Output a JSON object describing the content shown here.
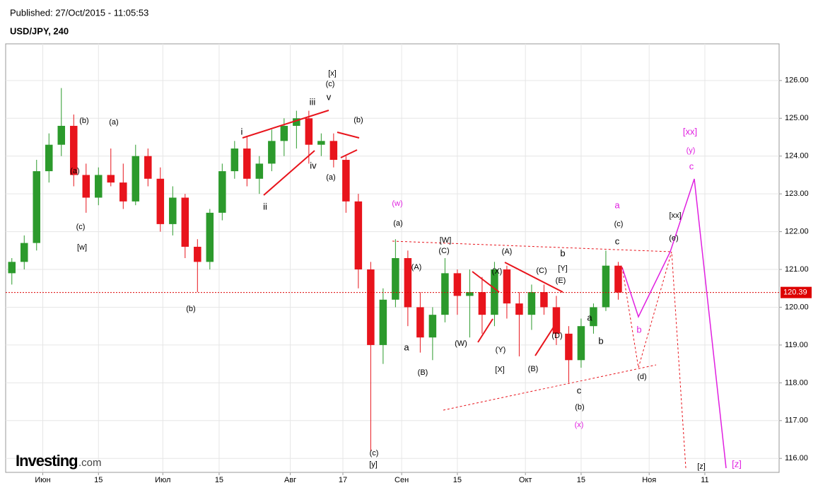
{
  "header": {
    "published": "Published: 27/Oct/2015 - 11:05:53",
    "symbol": "USD/JPY, 240"
  },
  "logo": {
    "brand": "Investing",
    "suffix": ".com"
  },
  "chart_data": {
    "type": "candlestick",
    "x": [
      1,
      3,
      5,
      7,
      9,
      11,
      13,
      15,
      17,
      19,
      21,
      23,
      25,
      27,
      29,
      31,
      33,
      35,
      37,
      39,
      41,
      43,
      45,
      47,
      49,
      51,
      53,
      55,
      57,
      59,
      61,
      63,
      65,
      67,
      69,
      71,
      73,
      75,
      77,
      79,
      81,
      83,
      85,
      87,
      89,
      91,
      93,
      95,
      97,
      99
    ],
    "open": [
      120.9,
      121.2,
      121.7,
      123.6,
      124.3,
      124.8,
      123.5,
      122.9,
      123.5,
      123.3,
      122.8,
      124.0,
      123.4,
      122.2,
      122.9,
      121.6,
      121.2,
      122.5,
      123.6,
      124.2,
      123.4,
      123.8,
      124.4,
      124.8,
      125.0,
      124.3,
      124.4,
      123.9,
      122.8,
      121.0,
      119.0,
      120.2,
      121.3,
      120.0,
      119.2,
      119.8,
      120.9,
      120.3,
      120.4,
      119.8,
      121.0,
      120.1,
      119.8,
      120.4,
      120.0,
      119.3,
      118.6,
      119.5,
      120.0,
      121.1
    ],
    "high": [
      121.3,
      121.9,
      123.9,
      124.6,
      125.8,
      125.1,
      123.8,
      123.7,
      124.2,
      123.8,
      124.3,
      124.2,
      123.7,
      123.2,
      123.0,
      121.8,
      122.6,
      123.8,
      124.4,
      124.5,
      124.0,
      124.7,
      125.0,
      125.2,
      125.2,
      124.6,
      124.6,
      124.0,
      123.0,
      121.2,
      120.5,
      121.8,
      121.5,
      120.4,
      120.0,
      121.3,
      121.0,
      121.0,
      120.8,
      121.2,
      121.1,
      120.4,
      120.6,
      120.6,
      120.3,
      119.5,
      119.7,
      120.1,
      121.5,
      121.2
    ],
    "low": [
      120.6,
      121.0,
      121.5,
      123.3,
      124.0,
      123.2,
      122.5,
      122.7,
      123.2,
      122.6,
      122.7,
      123.2,
      122.0,
      121.9,
      121.3,
      120.4,
      121.0,
      122.3,
      123.4,
      123.2,
      123.0,
      123.6,
      124.0,
      124.2,
      123.8,
      124.0,
      123.7,
      122.5,
      120.5,
      116.2,
      118.5,
      120.0,
      119.5,
      118.8,
      118.6,
      119.6,
      119.8,
      119.2,
      119.3,
      119.5,
      119.7,
      118.7,
      119.4,
      119.8,
      119.0,
      118.0,
      118.4,
      119.3,
      119.9,
      120.2
    ],
    "close": [
      121.2,
      121.7,
      123.6,
      124.3,
      124.8,
      123.5,
      122.9,
      123.5,
      123.3,
      122.8,
      124.0,
      123.4,
      122.2,
      122.9,
      121.6,
      121.2,
      122.5,
      123.6,
      124.2,
      123.4,
      123.8,
      124.4,
      124.8,
      125.0,
      124.3,
      124.4,
      123.9,
      122.8,
      121.0,
      119.0,
      120.2,
      121.3,
      120.0,
      119.2,
      119.8,
      120.9,
      120.3,
      120.4,
      119.8,
      121.0,
      120.1,
      119.8,
      120.4,
      120.0,
      119.3,
      118.6,
      119.5,
      120.0,
      121.1,
      120.39
    ],
    "up_color": "#2c9a2c",
    "down_color": "#e8141c",
    "last_price": 120.39,
    "xlim": [
      0,
      125
    ],
    "ylim": [
      115.63,
      126.97
    ],
    "xticks": [
      {
        "value": 6,
        "label": "Июн"
      },
      {
        "value": 15,
        "label": "15"
      },
      {
        "value": 25.4,
        "label": "Июл"
      },
      {
        "value": 34.5,
        "label": "15"
      },
      {
        "value": 46,
        "label": "Авг"
      },
      {
        "value": 54.5,
        "label": "17"
      },
      {
        "value": 64,
        "label": "Сен"
      },
      {
        "value": 73,
        "label": "15"
      },
      {
        "value": 84,
        "label": "Окт"
      },
      {
        "value": 93,
        "label": "15"
      },
      {
        "value": 104,
        "label": "Ноя"
      },
      {
        "value": 113,
        "label": "11"
      }
    ],
    "yticks": [
      {
        "value": 116,
        "label": "116.00"
      },
      {
        "value": 117,
        "label": "117.00"
      },
      {
        "value": 118,
        "label": "118.00"
      },
      {
        "value": 119,
        "label": "119.00"
      },
      {
        "value": 120,
        "label": "120.00"
      },
      {
        "value": 121,
        "label": "121.00"
      },
      {
        "value": 122,
        "label": "122.00"
      },
      {
        "value": 123,
        "label": "123.00"
      },
      {
        "value": 124,
        "label": "124.00"
      },
      {
        "value": 125,
        "label": "125.00"
      },
      {
        "value": 126,
        "label": "126.00"
      }
    ],
    "grid": true,
    "annotations": [
      "[x]",
      "(c)",
      "v",
      "iii",
      "i",
      "(b)",
      "(a)",
      "(a)",
      "(c)",
      "[w]",
      "ii",
      "iv",
      "(a)",
      "(b)",
      "(b)",
      "(w)",
      "(a)",
      "[W]",
      "(C)",
      "(A)",
      "a",
      "(B)",
      "(W)",
      "(X)",
      "(A)",
      "(Y)",
      "[X]",
      "(C)",
      "b",
      "[Y]",
      "(E)",
      "(D)",
      "(B)",
      "a",
      "b",
      "c",
      "(b)",
      "(x)",
      "a",
      "(c)",
      "c",
      "[xx]",
      "(y)",
      "c",
      "[xx]",
      "(e)",
      "b",
      "(d)",
      "(c)",
      "[y]",
      "[z]",
      "[z]"
    ]
  }
}
